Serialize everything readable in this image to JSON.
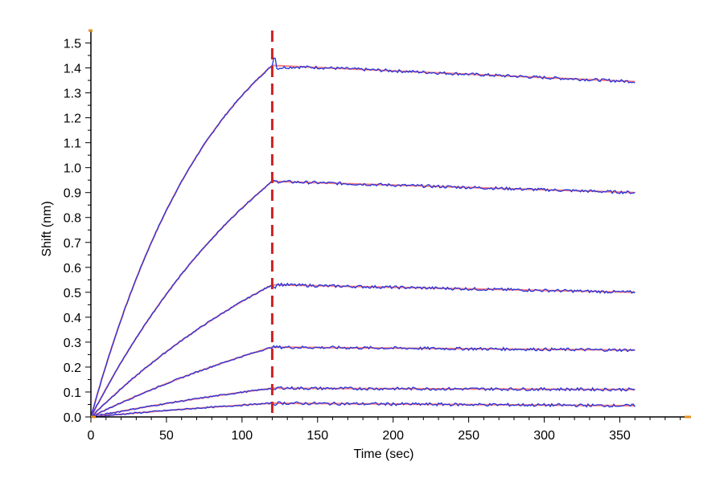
{
  "chart_data": {
    "type": "line",
    "title": "",
    "xlabel": "Time (sec)",
    "ylabel": "Shift (nm)",
    "xlim": [
      0,
      395
    ],
    "ylim": [
      0.0,
      1.55
    ],
    "xticks": [
      0,
      50,
      100,
      150,
      200,
      250,
      300,
      350
    ],
    "xtick_labels": [
      "0",
      "50",
      "100",
      "150",
      "200",
      "250",
      "300",
      "350"
    ],
    "yticks": [
      0.0,
      0.1,
      0.2,
      0.3,
      0.4,
      0.5,
      0.6,
      0.7,
      0.8,
      0.9,
      1.0,
      1.1,
      1.2,
      1.3,
      1.4,
      1.5
    ],
    "ytick_labels": [
      "0.0",
      "0.1",
      "0.2",
      "0.3",
      "0.4",
      "0.5",
      "0.6",
      "0.7",
      "0.8",
      "0.9",
      "1.0",
      "1.1",
      "1.2",
      "1.3",
      "1.4",
      "1.5"
    ],
    "marker_line": {
      "x": 120,
      "color": "#cc2222",
      "style": "dashed"
    },
    "grid": false,
    "legend": "none",
    "colors": {
      "measured": "#2233dd",
      "fit": "#ff7f7f",
      "axis": "#000000",
      "axis_accent": "#e8901a"
    },
    "association_end": 120,
    "end_time": 360,
    "series": [
      {
        "role": "curve",
        "values": {
          "peak": 1.41,
          "tau": 85,
          "end": 1.345,
          "bump": -0.04
        }
      },
      {
        "role": "curve",
        "values": {
          "peak": 0.945,
          "tau": 140,
          "end": 0.9,
          "bump": 0.0
        }
      },
      {
        "role": "curve",
        "values": {
          "peak": 0.53,
          "tau": 190,
          "end": 0.5,
          "bump": 0.01
        }
      },
      {
        "role": "curve",
        "values": {
          "peak": 0.28,
          "tau": 240,
          "end": 0.268,
          "bump": 0.0
        }
      },
      {
        "role": "curve",
        "values": {
          "peak": 0.115,
          "tau": 280,
          "end": 0.11,
          "bump": 0.012
        }
      },
      {
        "role": "curve",
        "values": {
          "peak": 0.055,
          "tau": 300,
          "end": 0.045,
          "bump": 0.005
        }
      }
    ]
  }
}
